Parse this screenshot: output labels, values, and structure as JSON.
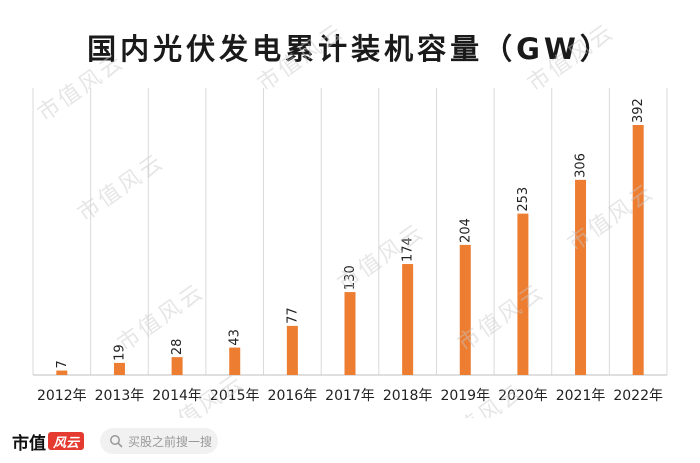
{
  "chart_data": {
    "type": "bar",
    "title": "国内光伏发电累计装机容量（GW）",
    "categories": [
      "2012年",
      "2013年",
      "2014年",
      "2015年",
      "2016年",
      "2017年",
      "2018年",
      "2019年",
      "2020年",
      "2021年",
      "2022年"
    ],
    "values": [
      7,
      19,
      28,
      43,
      77,
      130,
      174,
      204,
      253,
      306,
      392
    ],
    "data_labels": [
      "7",
      "19",
      "28",
      "43",
      "77",
      "130",
      "174",
      "204",
      "253",
      "306",
      "392"
    ],
    "ylim": [
      0,
      400
    ],
    "xlabel": "",
    "ylabel": "",
    "grid": "vertical",
    "legend": "none",
    "bar_color": "#ed7d31"
  },
  "watermark": {
    "text": "市值风云"
  },
  "footer": {
    "brand_text": "市值",
    "brand_mark": "风云",
    "search_placeholder": "买股之前搜一搜"
  }
}
